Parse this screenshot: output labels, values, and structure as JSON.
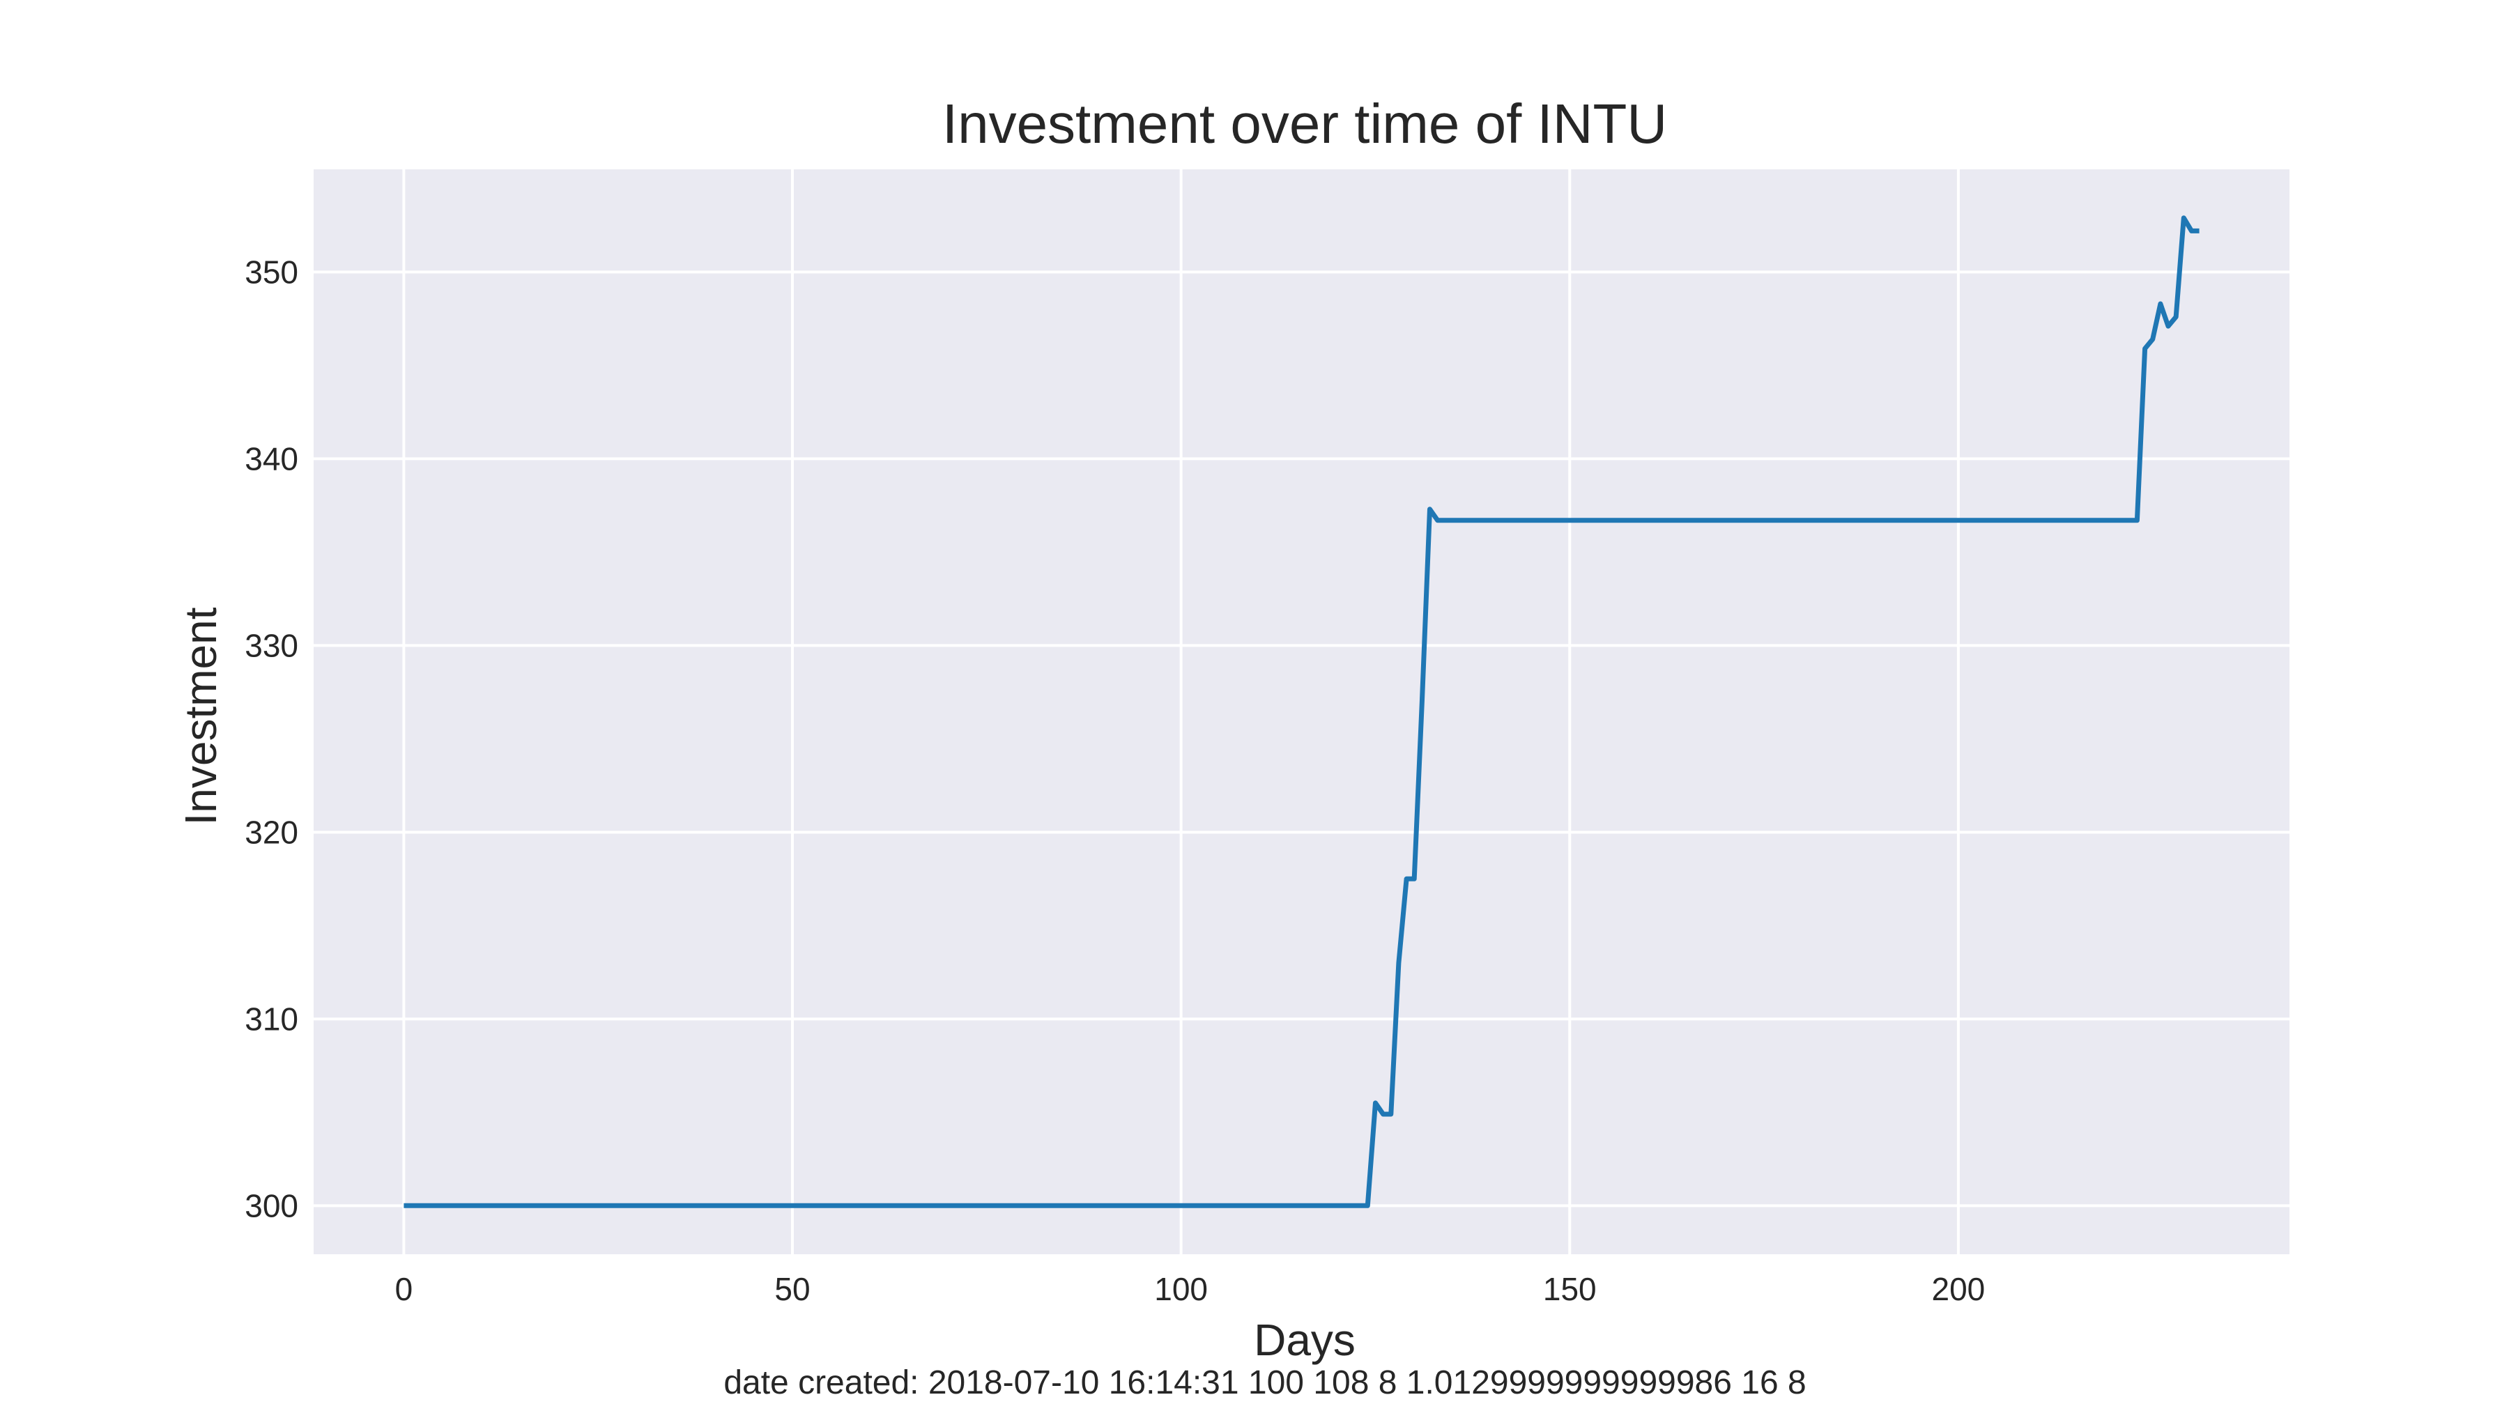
{
  "chart_data": {
    "type": "line",
    "title": "Investment over time of INTU",
    "xlabel": "Days",
    "ylabel": "Investment",
    "caption": "date created: 2018-07-10 16:14:31 100 108 8 1.0129999999999986 16 8",
    "xlim": [
      -11.6,
      242.6
    ],
    "ylim": [
      297.4,
      355.5
    ],
    "xticks": [
      0,
      50,
      100,
      150,
      200
    ],
    "yticks": [
      300,
      310,
      320,
      330,
      340,
      350
    ],
    "grid": true,
    "colors": {
      "background": "#eaeaf2",
      "grid": "#ffffff",
      "line": "#1f77b4"
    },
    "series": [
      {
        "points": [
          [
            0,
            300.0
          ],
          [
            124,
            300.0
          ],
          [
            125,
            305.5
          ],
          [
            126,
            304.9
          ],
          [
            127,
            304.9
          ],
          [
            128,
            313.0
          ],
          [
            129,
            317.5
          ],
          [
            130,
            317.5
          ],
          [
            131,
            327.0
          ],
          [
            132,
            337.3
          ],
          [
            133,
            336.7
          ],
          [
            223,
            336.7
          ],
          [
            224,
            345.9
          ],
          [
            225,
            346.4
          ],
          [
            226,
            348.3
          ],
          [
            227,
            347.1
          ],
          [
            228,
            347.6
          ],
          [
            229,
            352.9
          ],
          [
            230,
            352.2
          ],
          [
            231,
            352.2
          ]
        ]
      }
    ]
  }
}
